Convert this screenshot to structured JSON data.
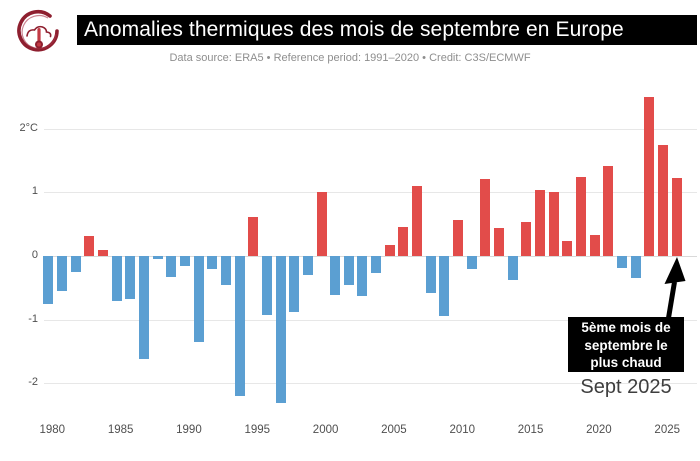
{
  "header": {
    "title": "Anomalies thermiques des mois de septembre en Europe",
    "subtitle": "Data source: ERA5 • Reference period: 1991–2020 • Credit: C3S/ECMWF",
    "logo": "climate-thermometer-logo"
  },
  "annotation": {
    "box_lines": [
      "5ème mois de",
      "septembre le",
      "plus chaud"
    ],
    "label": "Sept 2025"
  },
  "chart_data": {
    "type": "bar",
    "title": "Anomalies thermiques des mois de septembre en Europe",
    "xlabel": "",
    "ylabel": "°C",
    "grid": true,
    "legend": false,
    "ylim": [
      -2.6,
      2.7
    ],
    "years": [
      1979,
      1980,
      1981,
      1982,
      1983,
      1984,
      1985,
      1986,
      1987,
      1988,
      1989,
      1990,
      1991,
      1992,
      1993,
      1994,
      1995,
      1996,
      1997,
      1998,
      1999,
      2000,
      2001,
      2002,
      2003,
      2004,
      2005,
      2006,
      2007,
      2008,
      2009,
      2010,
      2011,
      2012,
      2013,
      2014,
      2015,
      2016,
      2017,
      2018,
      2019,
      2020,
      2021,
      2022,
      2023,
      2024,
      2025
    ],
    "values": [
      -0.76,
      -0.55,
      -0.25,
      0.31,
      0.1,
      -0.7,
      -0.68,
      -1.61,
      -0.05,
      -0.33,
      -0.16,
      -1.35,
      -0.2,
      -0.46,
      -2.19,
      0.61,
      -0.92,
      -2.3,
      -0.88,
      -0.3,
      1.0,
      -0.61,
      -0.46,
      -0.63,
      -0.27,
      0.17,
      0.46,
      1.1,
      -0.58,
      -0.94,
      0.57,
      -0.2,
      1.21,
      0.44,
      -0.37,
      0.54,
      1.03,
      1.01,
      0.24,
      1.24,
      0.33,
      1.42,
      -0.19,
      -0.34,
      2.49,
      1.75,
      1.22
    ],
    "yticks": [
      {
        "v": 2,
        "label": "2°C"
      },
      {
        "v": 1,
        "label": "1"
      },
      {
        "v": 0,
        "label": "0"
      },
      {
        "v": -1,
        "label": "-1"
      },
      {
        "v": -2,
        "label": "-2"
      }
    ],
    "xticks": [
      1980,
      1985,
      1990,
      1995,
      2000,
      2005,
      2010,
      2015,
      2020,
      2025
    ],
    "colors": {
      "positive": "#e24c4a",
      "negative": "#5b9fd2"
    }
  }
}
